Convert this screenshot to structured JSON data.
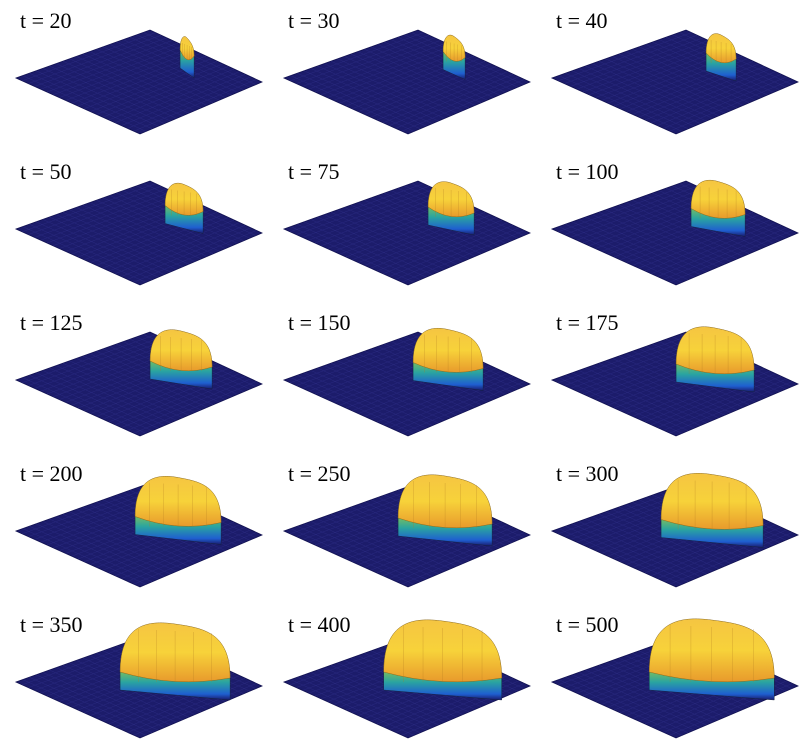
{
  "panels": [
    {
      "label": "t = 20"
    },
    {
      "label": "t = 30"
    },
    {
      "label": "t = 40"
    },
    {
      "label": "t = 50"
    },
    {
      "label": "t = 75"
    },
    {
      "label": "t = 100"
    },
    {
      "label": "t = 125"
    },
    {
      "label": "t = 150"
    },
    {
      "label": "t = 175"
    },
    {
      "label": "t = 200"
    },
    {
      "label": "t = 250"
    },
    {
      "label": "t = 300"
    },
    {
      "label": "t = 350"
    },
    {
      "label": "t = 400"
    },
    {
      "label": "t = 500"
    }
  ]
}
